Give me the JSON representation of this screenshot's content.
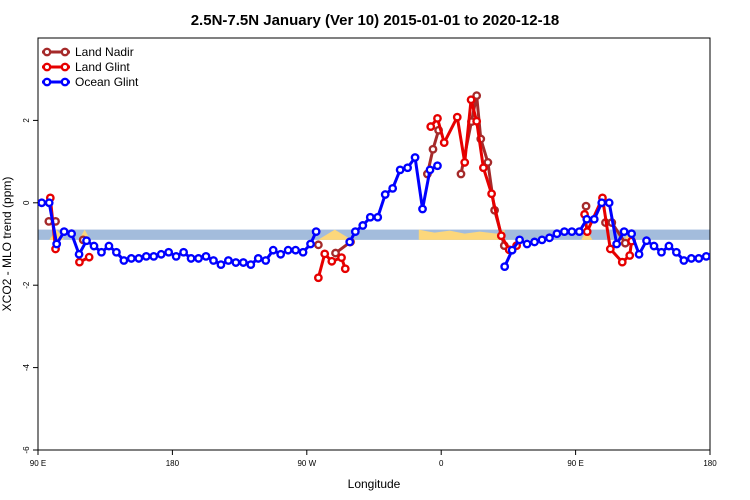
{
  "chart_data": {
    "type": "line",
    "title": "2.5N-7.5N January (Ver 10)   2015-01-01 to 2020-12-18",
    "xlabel": "Longitude",
    "ylabel": "XCO2 - MLO trend (ppm)",
    "xlim": [
      90,
      450
    ],
    "ylim": [
      -6,
      4
    ],
    "x_ticks": [
      {
        "value": 90,
        "label": "90 E"
      },
      {
        "value": 162,
        "label": "180"
      },
      {
        "value": 234,
        "label": "90 W"
      },
      {
        "value": 306,
        "label": "0"
      },
      {
        "value": 378,
        "label": "90 E"
      },
      {
        "value": 450,
        "label": "180"
      }
    ],
    "y_ticks": [
      {
        "value": -6,
        "label": "-6"
      },
      {
        "value": -4,
        "label": "-4"
      },
      {
        "value": -2,
        "label": "-2"
      },
      {
        "value": 0,
        "label": "0"
      },
      {
        "value": 2,
        "label": "2"
      }
    ],
    "grid": false,
    "legend_position": "top-left",
    "background_band": {
      "y_range": [
        -0.9,
        -0.65
      ],
      "ocean_color": "#a3bcdc",
      "land_color": "#fcd77b"
    },
    "series": [
      {
        "name": "Land Nadir",
        "color": "#a52a2a",
        "points": [
          [
            95.8,
            -0.45
          ],
          [
            99.4,
            -0.45
          ],
          [
            114.2,
            -0.9
          ],
          [
            240.2,
            -1.02
          ],
          [
            249.4,
            -1.22
          ],
          [
            257.4,
            -0.95
          ],
          [
            298.6,
            0.7
          ],
          [
            301.6,
            1.3
          ],
          [
            304.6,
            1.76
          ],
          [
            316.6,
            0.7
          ],
          [
            322.2,
            1.97
          ],
          [
            325.0,
            2.6
          ],
          [
            327.2,
            1.55
          ],
          [
            331.0,
            0.98
          ],
          [
            334.6,
            -0.18
          ],
          [
            339.8,
            -1.04
          ],
          [
            383.6,
            -0.08
          ],
          [
            394.0,
            -0.48
          ],
          [
            397.4,
            -0.48
          ],
          [
            404.6,
            -0.98
          ]
        ]
      },
      {
        "name": "Land Glint",
        "color": "#e60000",
        "points": [
          [
            96.6,
            0.12
          ],
          [
            99.4,
            -1.12
          ],
          [
            112.2,
            -1.44
          ],
          [
            117.4,
            -1.32
          ],
          [
            240.2,
            -1.82
          ],
          [
            243.6,
            -1.24
          ],
          [
            247.4,
            -1.42
          ],
          [
            252.6,
            -1.33
          ],
          [
            254.6,
            -1.6
          ],
          [
            300.4,
            1.85
          ],
          [
            304.0,
            2.05
          ],
          [
            307.6,
            1.46
          ],
          [
            314.6,
            2.08
          ],
          [
            318.6,
            0.98
          ],
          [
            322.0,
            2.5
          ],
          [
            325.0,
            1.98
          ],
          [
            328.6,
            0.85
          ],
          [
            333.0,
            0.22
          ],
          [
            338.2,
            -0.8
          ],
          [
            342.4,
            -1.14
          ],
          [
            346.4,
            -1.04
          ],
          [
            382.8,
            -0.28
          ],
          [
            384.2,
            -0.7
          ],
          [
            392.4,
            0.12
          ],
          [
            396.6,
            -1.12
          ],
          [
            403.0,
            -1.44
          ],
          [
            407.0,
            -1.28
          ],
          [
            408.0,
            -0.93
          ]
        ]
      },
      {
        "name": "Ocean Glint",
        "color": "#0000ff",
        "points": [
          [
            92.0,
            0.0
          ],
          [
            96.0,
            0.0
          ],
          [
            100.0,
            -1.0
          ],
          [
            104.0,
            -0.7
          ],
          [
            108.0,
            -0.75
          ],
          [
            112.0,
            -1.25
          ],
          [
            116.0,
            -0.92
          ],
          [
            120.0,
            -1.05
          ],
          [
            124.0,
            -1.2
          ],
          [
            128.0,
            -1.05
          ],
          [
            132.0,
            -1.2
          ],
          [
            136.0,
            -1.4
          ],
          [
            140.0,
            -1.35
          ],
          [
            144.0,
            -1.35
          ],
          [
            148.0,
            -1.3
          ],
          [
            152.0,
            -1.3
          ],
          [
            156.0,
            -1.25
          ],
          [
            160.0,
            -1.2
          ],
          [
            164.0,
            -1.3
          ],
          [
            168.0,
            -1.2
          ],
          [
            172.0,
            -1.35
          ],
          [
            176.0,
            -1.35
          ],
          [
            180.0,
            -1.3
          ],
          [
            184.0,
            -1.4
          ],
          [
            188.0,
            -1.5
          ],
          [
            192.0,
            -1.4
          ],
          [
            196.0,
            -1.45
          ],
          [
            200.0,
            -1.45
          ],
          [
            204.0,
            -1.5
          ],
          [
            208.0,
            -1.35
          ],
          [
            212.0,
            -1.4
          ],
          [
            216.0,
            -1.15
          ],
          [
            220.0,
            -1.25
          ],
          [
            224.0,
            -1.15
          ],
          [
            228.0,
            -1.15
          ],
          [
            232.0,
            -1.2
          ],
          [
            236.0,
            -1.0
          ],
          [
            239.0,
            -0.7
          ],
          [
            257.0,
            -0.95
          ],
          [
            260.0,
            -0.7
          ],
          [
            264.0,
            -0.55
          ],
          [
            268.0,
            -0.35
          ],
          [
            272.0,
            -0.35
          ],
          [
            276.0,
            0.2
          ],
          [
            280.0,
            0.35
          ],
          [
            284.0,
            0.8
          ],
          [
            288.0,
            0.85
          ],
          [
            292.0,
            1.1
          ],
          [
            296.0,
            -0.15
          ],
          [
            300.0,
            0.8
          ],
          [
            304.0,
            0.9
          ],
          [
            340.0,
            -1.55
          ],
          [
            344.0,
            -1.15
          ],
          [
            348.0,
            -0.9
          ],
          [
            352.0,
            -1.0
          ],
          [
            356.0,
            -0.95
          ],
          [
            360.0,
            -0.9
          ],
          [
            364.0,
            -0.85
          ],
          [
            368.0,
            -0.75
          ],
          [
            372.0,
            -0.7
          ],
          [
            376.0,
            -0.7
          ],
          [
            380.0,
            -0.7
          ],
          [
            384.0,
            -0.4
          ],
          [
            388.0,
            -0.4
          ],
          [
            392.0,
            0.0
          ],
          [
            396.0,
            0.0
          ],
          [
            400.0,
            -1.0
          ],
          [
            404.0,
            -0.7
          ],
          [
            408.0,
            -0.75
          ],
          [
            412.0,
            -1.25
          ],
          [
            416.0,
            -0.92
          ],
          [
            420.0,
            -1.05
          ],
          [
            424.0,
            -1.2
          ],
          [
            428.0,
            -1.05
          ],
          [
            432.0,
            -1.2
          ],
          [
            436.0,
            -1.4
          ],
          [
            440.0,
            -1.35
          ],
          [
            444.0,
            -1.35
          ],
          [
            448.0,
            -1.3
          ],
          [
            452.0,
            -1.3
          ],
          [
            456.0,
            -1.25
          ],
          [
            460.0,
            -1.2
          ]
        ]
      }
    ]
  }
}
